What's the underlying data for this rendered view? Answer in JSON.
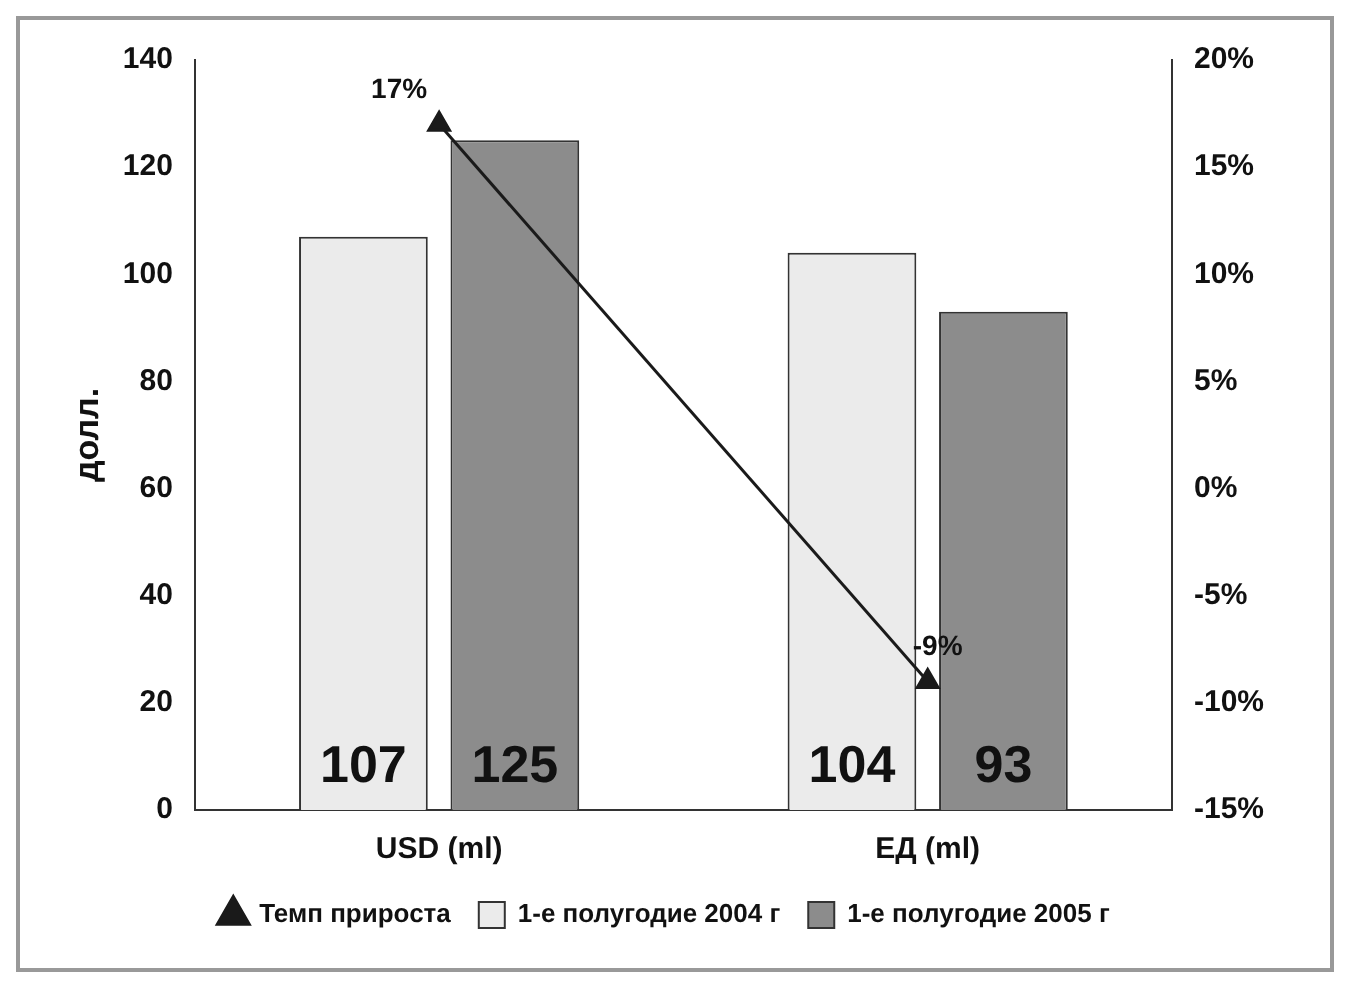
{
  "chart_data": {
    "type": "bar",
    "categories": [
      "USD (ml)",
      "ЕД (ml)"
    ],
    "ylabel": "долл.",
    "ylim": [
      0,
      140
    ],
    "yticks": [
      0,
      20,
      40,
      60,
      80,
      100,
      120,
      140
    ],
    "y2lim": [
      -15,
      20
    ],
    "y2ticks": [
      {
        "value": -15,
        "label": "-15%"
      },
      {
        "value": -10,
        "label": "-10%"
      },
      {
        "value": -5,
        "label": "-5%"
      },
      {
        "value": 0,
        "label": "0%"
      },
      {
        "value": 5,
        "label": "5%"
      },
      {
        "value": 10,
        "label": "10%"
      },
      {
        "value": 15,
        "label": "15%"
      },
      {
        "value": 20,
        "label": "20%"
      }
    ],
    "series": [
      {
        "name": "1-е полугодие 2004 г",
        "color": "#ebebeb",
        "values": [
          107,
          104
        ],
        "value_labels": [
          "107",
          "104"
        ]
      },
      {
        "name": "1-е полугодие 2005 г",
        "color": "#8c8c8c",
        "values": [
          125,
          93
        ],
        "value_labels": [
          "125",
          "93"
        ]
      },
      {
        "name": "Темп прироста",
        "type": "line",
        "axis": "y2",
        "color": "#1a1a1a",
        "values": [
          17,
          -9
        ],
        "value_labels": [
          "17%",
          "-9%"
        ],
        "marker": "triangle"
      }
    ],
    "legend": "bottom",
    "grid": false
  }
}
